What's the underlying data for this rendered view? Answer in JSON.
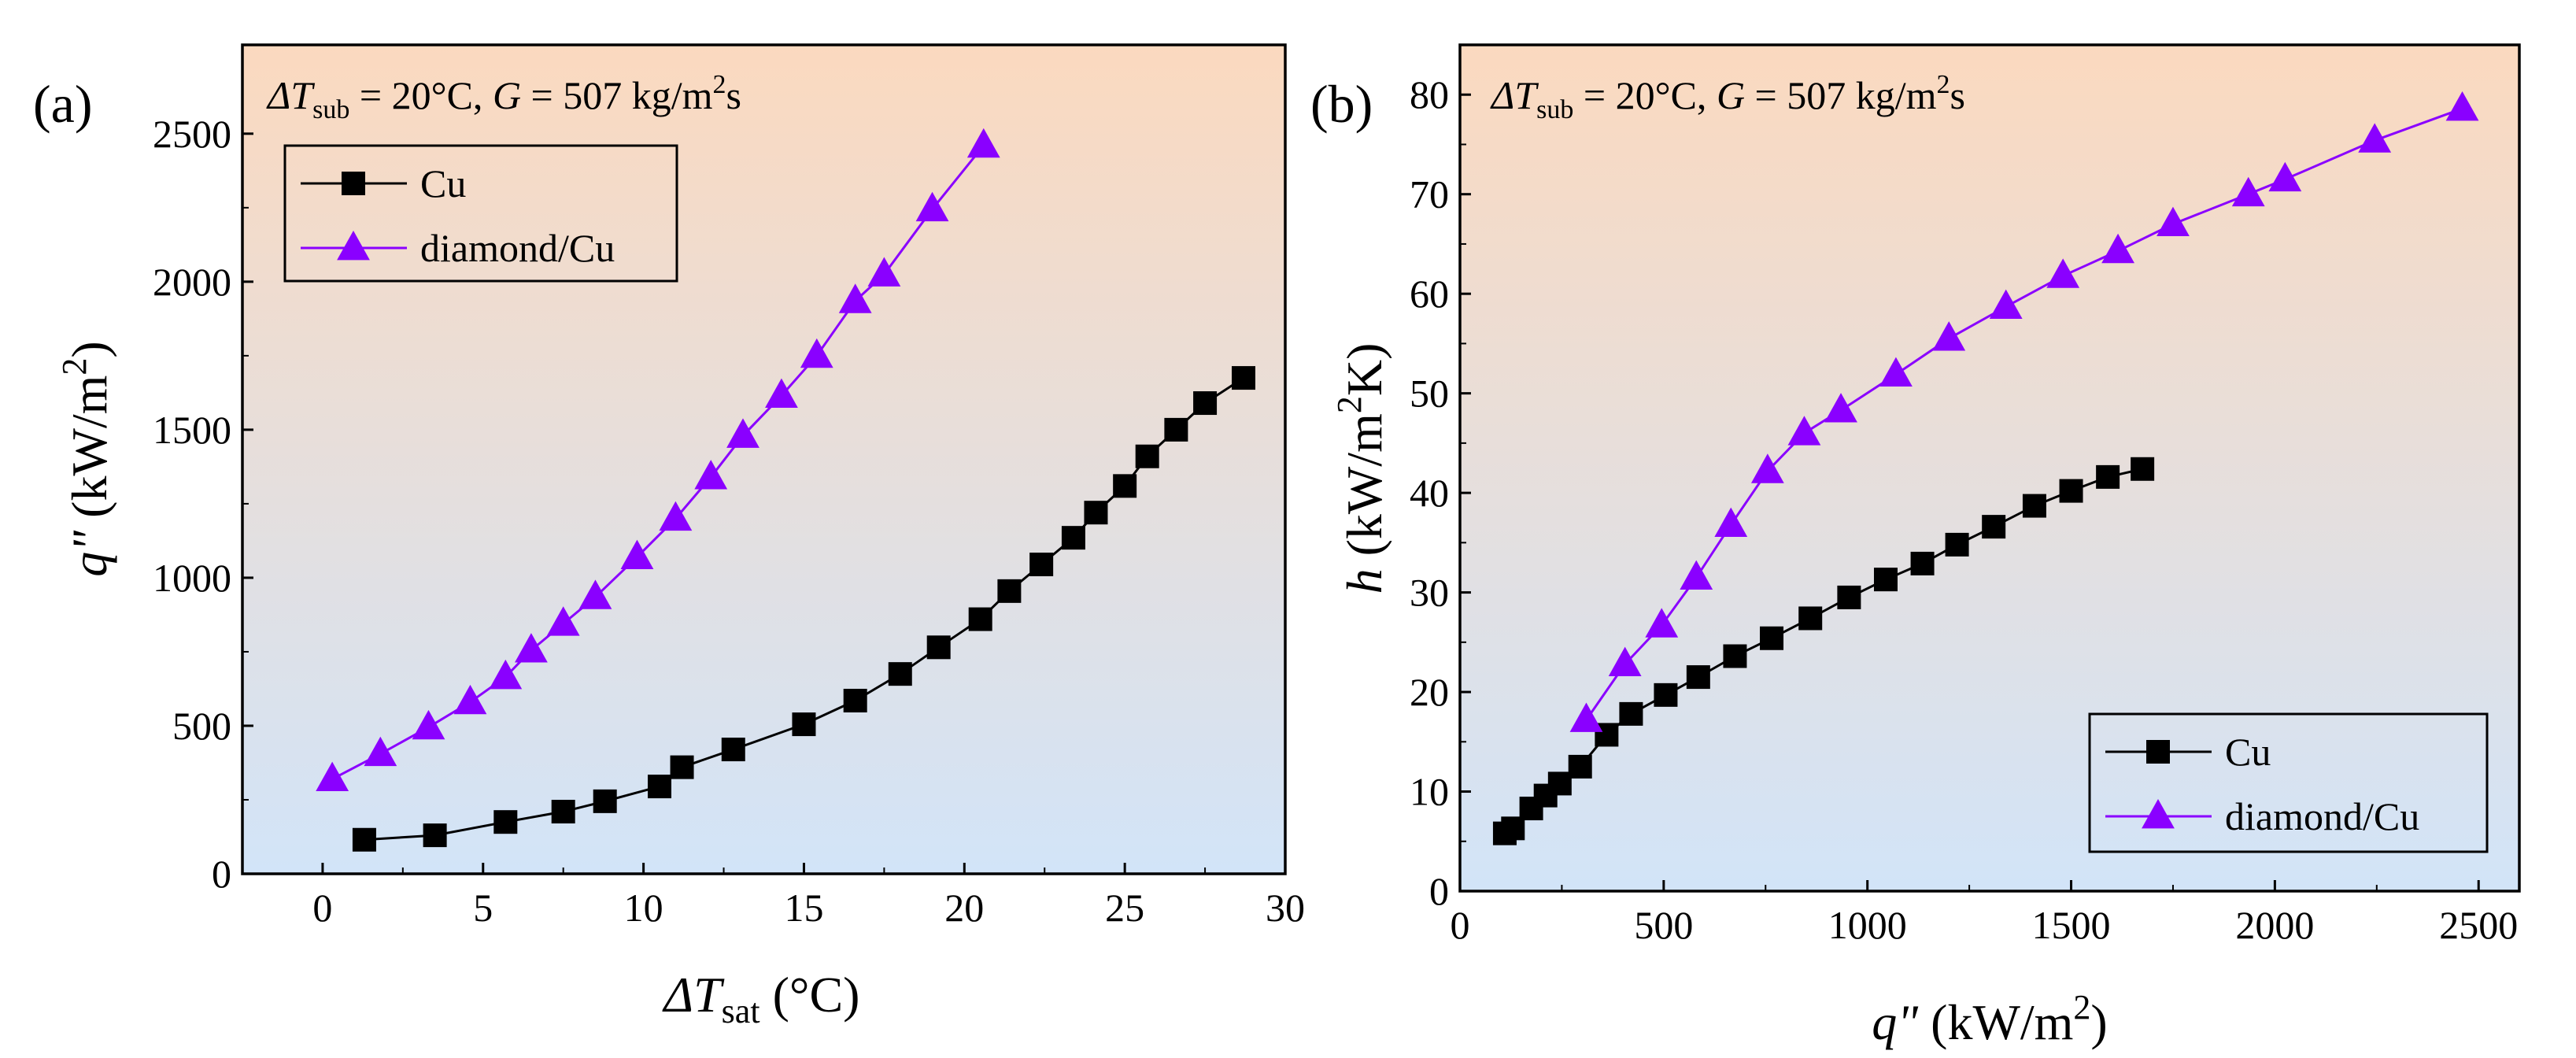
{
  "chart_data": [
    {
      "type": "line",
      "panel_label": "(a)",
      "annotation": {
        "dt_sym": "ΔT",
        "dt_sub": "sub",
        "dt_rest": " = 20°C, ",
        "g_sym": "G",
        "g_rest": " = 507 kg/m",
        "g_sup": "2",
        "g_end": "s"
      },
      "xlabel": {
        "main": "ΔT",
        "sub": "sat",
        "unit": " (°C)"
      },
      "ylabel": {
        "main": "q\"",
        "unit": " (kW/m",
        "sup": "2",
        "end": ")"
      },
      "xlim": [
        -2.5,
        30
      ],
      "ylim": [
        0,
        2800
      ],
      "xticks": [
        0,
        5,
        10,
        15,
        20,
        25,
        30
      ],
      "yticks": [
        0,
        500,
        1000,
        1500,
        2000,
        2500
      ],
      "legend_position": "top-left",
      "series": [
        {
          "name": "Cu",
          "marker": "square",
          "x": [
            1.3,
            3.5,
            5.7,
            7.5,
            8.8,
            10.5,
            11.2,
            12.8,
            15.0,
            16.6,
            18.0,
            19.2,
            20.5,
            21.4,
            22.4,
            23.4,
            24.1,
            25.0,
            25.7,
            26.6,
            27.5,
            28.7
          ],
          "y": [
            115,
            130,
            175,
            210,
            245,
            295,
            360,
            420,
            505,
            585,
            675,
            765,
            860,
            955,
            1045,
            1135,
            1220,
            1310,
            1410,
            1500,
            1590,
            1675
          ]
        },
        {
          "name": "diamond/Cu",
          "marker": "triangle",
          "x": [
            0.3,
            1.8,
            3.3,
            4.6,
            5.7,
            6.5,
            7.5,
            8.5,
            9.8,
            11.0,
            12.1,
            13.1,
            14.3,
            15.4,
            16.6,
            17.5,
            19.0,
            20.6
          ],
          "y": [
            320,
            405,
            495,
            580,
            665,
            755,
            845,
            935,
            1070,
            1200,
            1340,
            1480,
            1615,
            1750,
            1935,
            2025,
            2245,
            2460
          ]
        }
      ]
    },
    {
      "type": "line",
      "panel_label": "(b)",
      "annotation": {
        "dt_sym": "ΔT",
        "dt_sub": "sub",
        "dt_rest": " = 20°C, ",
        "g_sym": "G",
        "g_rest": " = 507 kg/m",
        "g_sup": "2",
        "g_end": "s"
      },
      "xlabel": {
        "main": "q\"",
        "unit": " (kW/m",
        "sup": "2",
        "end": ")"
      },
      "ylabel": {
        "main": "h",
        "unit": " (kW/m",
        "sup": "2",
        "end": "K)"
      },
      "xlim": [
        0,
        2600
      ],
      "ylim": [
        0,
        85
      ],
      "xticks": [
        0,
        500,
        1000,
        1500,
        2000,
        2500
      ],
      "yticks": [
        0,
        10,
        20,
        30,
        40,
        50,
        60,
        70,
        80
      ],
      "legend_position": "bottom-right",
      "series": [
        {
          "name": "Cu",
          "marker": "square",
          "x": [
            110,
            130,
            175,
            210,
            245,
            295,
            360,
            420,
            505,
            585,
            675,
            765,
            860,
            955,
            1045,
            1135,
            1220,
            1310,
            1410,
            1500,
            1590,
            1675
          ],
          "y": [
            5.8,
            6.3,
            8.3,
            9.6,
            10.8,
            12.5,
            15.7,
            17.8,
            19.7,
            21.5,
            23.6,
            25.4,
            27.4,
            29.5,
            31.3,
            32.9,
            34.8,
            36.6,
            38.7,
            40.2,
            41.6,
            42.4
          ]
        },
        {
          "name": "diamond/Cu",
          "marker": "triangle",
          "x": [
            310,
            405,
            495,
            580,
            665,
            755,
            845,
            935,
            1070,
            1200,
            1340,
            1480,
            1615,
            1750,
            1935,
            2025,
            2245,
            2460
          ],
          "y": [
            17.2,
            22.8,
            26.7,
            31.5,
            36.8,
            42.2,
            46.0,
            48.3,
            51.9,
            55.5,
            58.7,
            61.8,
            64.3,
            67.0,
            70.0,
            71.5,
            75.4,
            78.6
          ]
        }
      ]
    }
  ],
  "colors": {
    "cu": "#000000",
    "diamond": "#8a00ff",
    "bg_top": "#fbd9bf",
    "bg_bottom": "#d2e4f8"
  }
}
